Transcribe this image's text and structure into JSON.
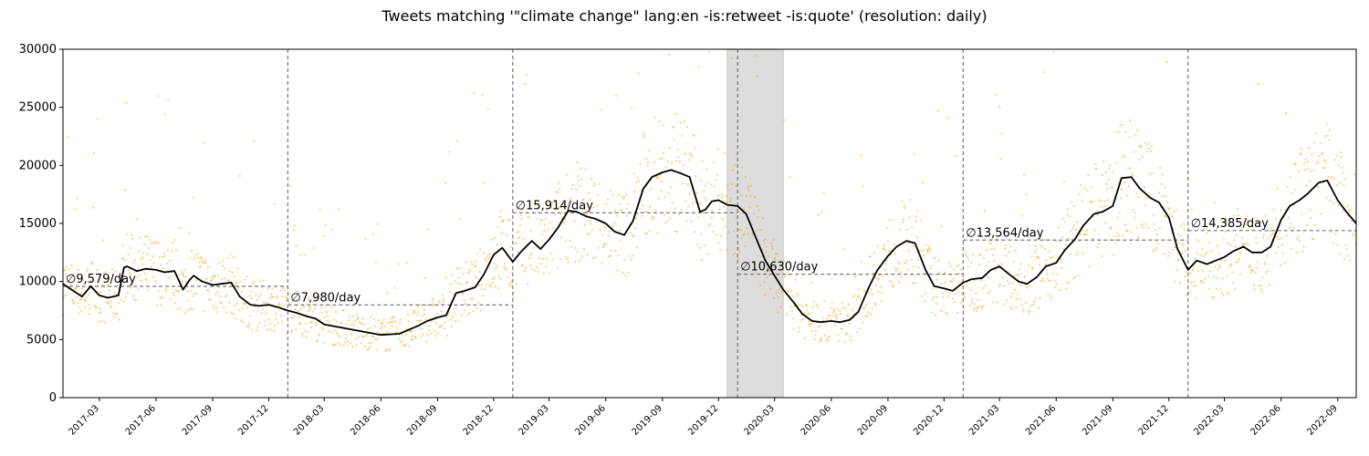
{
  "chart_data": {
    "type": "line",
    "title": "Tweets matching '\"climate change\" lang:en -is:retweet -is:quote' (resolution: daily)",
    "xlabel": "",
    "ylabel": "",
    "ylim": [
      0,
      30000
    ],
    "xlim": [
      "2017-01-01",
      "2022-10-01"
    ],
    "yticks": [
      0,
      5000,
      10000,
      15000,
      20000,
      25000,
      30000
    ],
    "xticks": [
      "2017-03",
      "2017-06",
      "2017-09",
      "2017-12",
      "2018-03",
      "2018-06",
      "2018-09",
      "2018-12",
      "2019-03",
      "2019-06",
      "2019-09",
      "2019-12",
      "2020-03",
      "2020-06",
      "2020-09",
      "2020-12",
      "2021-03",
      "2021-06",
      "2021-09",
      "2021-12",
      "2022-03",
      "2022-06",
      "2022-09"
    ],
    "grid": false,
    "colors": {
      "line": "#000000",
      "scatter": "#f5a623",
      "mean": "#777777",
      "shade": "#dddddd"
    },
    "shaded_span": [
      "2019-12-15",
      "2020-03-15"
    ],
    "year_boundaries": [
      "2018-01-01",
      "2019-01-01",
      "2020-01-01",
      "2021-01-01",
      "2022-01-01"
    ],
    "yearly_means": [
      {
        "start": "2017-01-01",
        "end": "2018-01-01",
        "value": 9579,
        "label": "∅9,579/day"
      },
      {
        "start": "2018-01-01",
        "end": "2019-01-01",
        "value": 7980,
        "label": "∅7,980/day"
      },
      {
        "start": "2019-01-01",
        "end": "2020-01-01",
        "value": 15914,
        "label": "∅15,914/day"
      },
      {
        "start": "2020-01-01",
        "end": "2021-01-01",
        "value": 10630,
        "label": "∅10,630/day"
      },
      {
        "start": "2021-01-01",
        "end": "2022-01-01",
        "value": 13564,
        "label": "∅13,564/day"
      },
      {
        "start": "2022-01-01",
        "end": "2022-10-01",
        "value": 14385,
        "label": "∅14,385/day"
      }
    ],
    "series": [
      {
        "x": [
          "2017-01-01",
          "2017-01-15",
          "2017-02-01",
          "2017-02-15",
          "2017-03-01",
          "2017-03-15",
          "2017-04-01",
          "2017-04-10",
          "2017-04-15",
          "2017-05-01",
          "2017-05-15",
          "2017-06-01",
          "2017-06-15",
          "2017-07-01",
          "2017-07-15",
          "2017-07-25",
          "2017-08-01",
          "2017-08-15",
          "2017-09-01",
          "2017-09-15",
          "2017-10-01",
          "2017-10-15",
          "2017-11-01",
          "2017-11-15",
          "2017-12-01",
          "2017-12-15",
          "2018-01-01",
          "2018-01-15",
          "2018-02-01",
          "2018-02-15",
          "2018-03-01",
          "2018-04-01",
          "2018-05-01",
          "2018-06-01",
          "2018-07-01",
          "2018-08-01",
          "2018-08-15",
          "2018-09-01",
          "2018-09-15",
          "2018-10-01",
          "2018-10-15",
          "2018-11-01",
          "2018-11-15",
          "2018-12-01",
          "2018-12-15",
          "2019-01-01",
          "2019-01-15",
          "2019-02-01",
          "2019-02-15",
          "2019-03-01",
          "2019-03-15",
          "2019-04-01",
          "2019-04-15",
          "2019-05-01",
          "2019-05-15",
          "2019-06-01",
          "2019-06-15",
          "2019-07-01",
          "2019-07-15",
          "2019-08-01",
          "2019-08-15",
          "2019-09-01",
          "2019-09-15",
          "2019-10-01",
          "2019-10-15",
          "2019-11-01",
          "2019-11-10",
          "2019-11-20",
          "2019-12-01",
          "2019-12-15",
          "2020-01-01",
          "2020-01-15",
          "2020-02-01",
          "2020-02-15",
          "2020-03-01",
          "2020-03-15",
          "2020-04-01",
          "2020-04-15",
          "2020-05-01",
          "2020-05-15",
          "2020-06-01",
          "2020-06-15",
          "2020-07-01",
          "2020-07-15",
          "2020-08-01",
          "2020-08-15",
          "2020-09-01",
          "2020-09-15",
          "2020-10-01",
          "2020-10-15",
          "2020-11-01",
          "2020-11-15",
          "2020-12-01",
          "2020-12-15",
          "2021-01-01",
          "2021-01-15",
          "2021-02-01",
          "2021-02-15",
          "2021-03-01",
          "2021-03-15",
          "2021-04-01",
          "2021-04-15",
          "2021-05-01",
          "2021-05-15",
          "2021-06-01",
          "2021-06-15",
          "2021-07-01",
          "2021-07-15",
          "2021-08-01",
          "2021-08-15",
          "2021-09-01",
          "2021-09-15",
          "2021-10-01",
          "2021-10-15",
          "2021-11-01",
          "2021-11-15",
          "2021-12-01",
          "2021-12-15",
          "2022-01-01",
          "2022-01-15",
          "2022-02-01",
          "2022-02-15",
          "2022-03-01",
          "2022-03-15",
          "2022-04-01",
          "2022-04-15",
          "2022-05-01",
          "2022-05-15",
          "2022-06-01",
          "2022-06-15",
          "2022-07-01",
          "2022-07-15",
          "2022-08-01",
          "2022-08-15",
          "2022-09-01",
          "2022-09-15",
          "2022-10-01"
        ],
        "y": [
          9800,
          9300,
          8700,
          9600,
          8800,
          8600,
          8800,
          11200,
          11300,
          10900,
          11100,
          11000,
          10800,
          10900,
          9300,
          10100,
          10500,
          10000,
          9700,
          9800,
          9900,
          8700,
          8000,
          7900,
          8000,
          7800,
          7500,
          7300,
          7000,
          6800,
          6300,
          6000,
          5700,
          5400,
          5500,
          6200,
          6600,
          6900,
          7100,
          9000,
          9200,
          9500,
          10600,
          12300,
          12900,
          11700,
          12600,
          13500,
          12800,
          13600,
          14600,
          16100,
          16000,
          15600,
          15400,
          15000,
          14300,
          14000,
          15200,
          18000,
          19000,
          19400,
          19600,
          19300,
          19000,
          16000,
          16200,
          16900,
          17000,
          16600,
          16500,
          15800,
          13600,
          11800,
          10500,
          9300,
          8200,
          7200,
          6600,
          6500,
          6600,
          6500,
          6700,
          7400,
          9500,
          11000,
          12200,
          13000,
          13500,
          13300,
          11000,
          9600,
          9400,
          9200,
          9900,
          10200,
          10300,
          11000,
          11300,
          10700,
          10000,
          9800,
          10400,
          11300,
          11600,
          12700,
          13600,
          14800,
          15800,
          16000,
          16500,
          18900,
          19000,
          18000,
          17200,
          16800,
          15500,
          12800,
          11000,
          11800,
          11500,
          11800,
          12100,
          12600,
          13000,
          12500,
          12500,
          13000,
          15300,
          16500,
          17000,
          17600,
          18500,
          18700,
          17000,
          16000,
          15000
        ]
      }
    ]
  }
}
